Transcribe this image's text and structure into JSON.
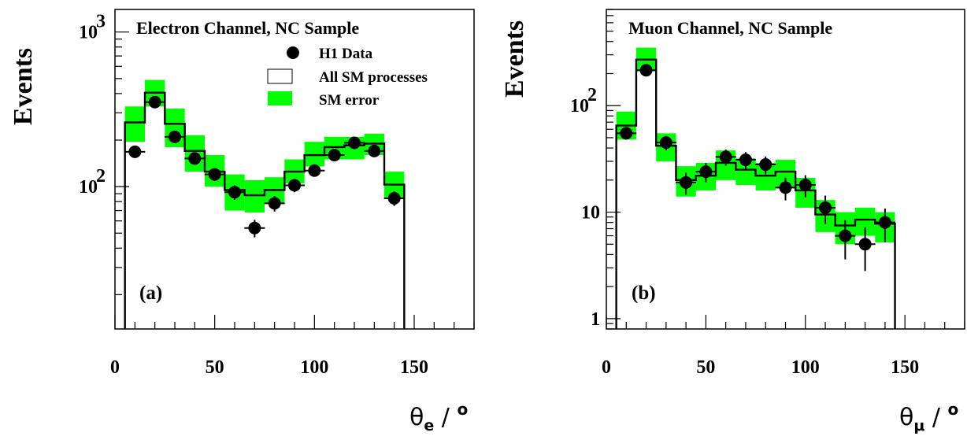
{
  "chart_data": [
    {
      "type": "bar",
      "panel_label": "(a)",
      "title": "Electron Channel, NC Sample",
      "ylabel": "Events",
      "xlabel": {
        "symbol": "θ",
        "sub": "e",
        "tail": " / ",
        "sup": "o"
      },
      "xlim": [
        0,
        180
      ],
      "xticks": [
        0,
        50,
        100,
        150
      ],
      "yscale": "log",
      "ylim": [
        12,
        1400
      ],
      "yticks": [
        {
          "v": 100,
          "base": "10",
          "exp": "2"
        },
        {
          "v": 1000,
          "base": "10",
          "exp": "3"
        }
      ],
      "bin_edges": [
        5,
        15,
        25,
        35,
        45,
        55,
        65,
        75,
        85,
        95,
        105,
        115,
        125,
        135,
        145
      ],
      "sm_prediction": [
        260,
        405,
        255,
        170,
        125,
        95,
        88,
        95,
        125,
        160,
        180,
        185,
        190,
        103
      ],
      "sm_error_lo": [
        195,
        330,
        180,
        125,
        100,
        70,
        68,
        78,
        105,
        135,
        150,
        150,
        160,
        83
      ],
      "sm_error_hi": [
        330,
        490,
        320,
        215,
        160,
        120,
        110,
        115,
        150,
        195,
        210,
        210,
        220,
        125
      ],
      "data": {
        "x": [
          10,
          20,
          30,
          40,
          50,
          60,
          70,
          80,
          90,
          100,
          110,
          120,
          130,
          140
        ],
        "y": [
          168,
          352,
          210,
          152,
          120,
          92,
          54,
          78,
          102,
          127,
          160,
          192,
          170,
          84
        ],
        "err": [
          13,
          19,
          15,
          12,
          11,
          10,
          7,
          9,
          10,
          11,
          13,
          14,
          13,
          9
        ]
      },
      "legend": {
        "position": "top-right",
        "entries": [
          {
            "label": "H1 Data",
            "marker": "circle"
          },
          {
            "label": "All SM processes",
            "marker": "open-box"
          },
          {
            "label": "SM error",
            "marker": "filled-box"
          }
        ]
      },
      "colors": {
        "error_band": "#00ff00",
        "line": "#000000",
        "marker": "#000000"
      }
    },
    {
      "type": "bar",
      "panel_label": "(b)",
      "title": "Muon Channel, NC Sample",
      "ylabel": "Events",
      "xlabel": {
        "symbol": "θ",
        "sub": "μ",
        "tail": " / ",
        "sup": "o"
      },
      "xlim": [
        0,
        180
      ],
      "xticks": [
        0,
        50,
        100,
        150
      ],
      "yscale": "log",
      "ylim": [
        0.8,
        800
      ],
      "yticks": [
        {
          "v": 1,
          "base": "1",
          "exp": ""
        },
        {
          "v": 10,
          "base": "10",
          "exp": ""
        },
        {
          "v": 100,
          "base": "10",
          "exp": "2"
        }
      ],
      "bin_edges": [
        5,
        15,
        25,
        35,
        45,
        55,
        65,
        75,
        85,
        95,
        105,
        115,
        125,
        135,
        145
      ],
      "sm_prediction": [
        65,
        270,
        42,
        20,
        22,
        29,
        25,
        22,
        24,
        16,
        9.5,
        7.5,
        8.5,
        7.8
      ],
      "sm_error_lo": [
        48,
        210,
        30,
        14,
        16,
        20,
        18,
        16,
        17,
        11,
        6.5,
        5,
        6,
        5.2
      ],
      "sm_error_hi": [
        88,
        350,
        55,
        27,
        29,
        38,
        32,
        29,
        31,
        21,
        13,
        10,
        11,
        10
      ],
      "data": {
        "x": [
          10,
          20,
          30,
          40,
          50,
          60,
          70,
          80,
          90,
          100,
          110,
          120,
          130,
          140
        ],
        "y": [
          55,
          215,
          45,
          19,
          24,
          33,
          31,
          28,
          17,
          18,
          11,
          6,
          5,
          8
        ],
        "err": [
          7,
          15,
          7,
          4.4,
          4.9,
          5.7,
          5.6,
          5.3,
          4.1,
          4.2,
          3.3,
          2.4,
          2.2,
          2.8
        ]
      },
      "colors": {
        "error_band": "#00ff00",
        "line": "#000000",
        "marker": "#000000"
      }
    }
  ]
}
